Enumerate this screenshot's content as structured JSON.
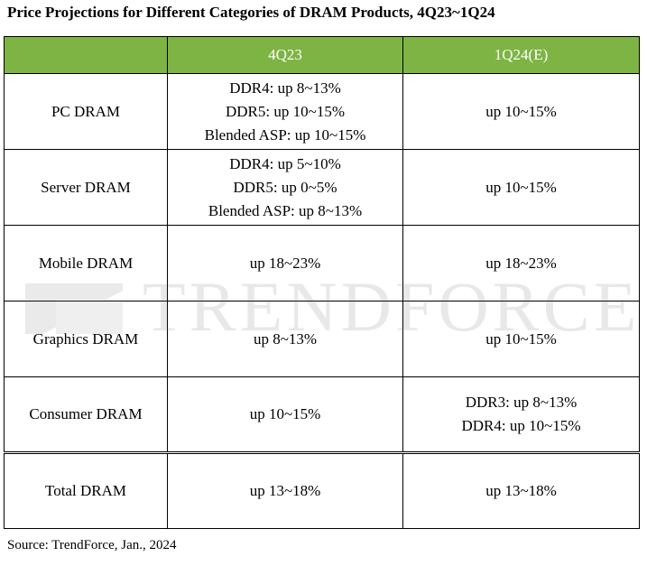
{
  "title": "Price Projections for Different Categories of DRAM Products, 4Q23~1Q24",
  "table": {
    "headers": [
      "",
      "4Q23",
      "1Q24(E)"
    ],
    "rows": [
      {
        "category": "PC DRAM",
        "q4_23": [
          "DDR4: up 8~13%",
          "DDR5:  up 10~15%",
          "Blended ASP: up 10~15%"
        ],
        "q1_24": [
          "up  10~15%"
        ]
      },
      {
        "category": "Server DRAM",
        "q4_23": [
          "DDR4: up 5~10%",
          "DDR5: up 0~5%",
          "Blended ASP: up 8~13%"
        ],
        "q1_24": [
          "up  10~15%"
        ]
      },
      {
        "category": "Mobile DRAM",
        "q4_23": [
          "up 18~23%"
        ],
        "q1_24": [
          "up 18~23%"
        ]
      },
      {
        "category": "Graphics DRAM",
        "q4_23": [
          "up 8~13%"
        ],
        "q1_24": [
          "up  10~15%"
        ]
      },
      {
        "category": "Consumer DRAM",
        "q4_23": [
          "up 10~15%"
        ],
        "q1_24": [
          "DDR3: up 8~13%",
          "DDR4: up 10~15%"
        ]
      },
      {
        "category": "Total DRAM",
        "q4_23": [
          "up 13~18%"
        ],
        "q1_24": [
          "up 13~18%"
        ]
      }
    ]
  },
  "watermark": "TRENDFORCE",
  "source": "Source: TrendForce, Jan., 2024",
  "colors": {
    "header_bg": "#7db443",
    "header_text": "#ffffff"
  }
}
